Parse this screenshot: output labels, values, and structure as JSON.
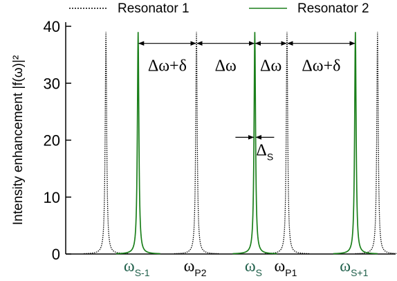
{
  "chart_data": {
    "type": "line",
    "ylabel": "Intensity enhancement |f(ω)|²",
    "ylim": [
      0,
      40
    ],
    "yticks": [
      "0",
      "10",
      "20",
      "30",
      "40"
    ],
    "grid": false,
    "legend_position": "top",
    "series": [
      {
        "name": "Resonator 1",
        "color": "#000000",
        "style": "dotted",
        "peaks": [
          {
            "x": 1.0,
            "height": 39
          },
          {
            "x": 3.25,
            "height": 39
          },
          {
            "x": 5.5,
            "height": 39
          },
          {
            "x": 7.75,
            "height": 39
          }
        ]
      },
      {
        "name": "Resonator 2",
        "color": "#1a7f1a",
        "style": "solid",
        "peaks": [
          {
            "x": 1.8,
            "height": 39
          },
          {
            "x": 4.7,
            "height": 39
          },
          {
            "x": 7.2,
            "height": 39
          }
        ]
      }
    ],
    "xtick_labels": [
      {
        "base": "ω",
        "sub": "S-1",
        "x": 1.8,
        "color": "#1f5f4a"
      },
      {
        "base": "ω",
        "sub": "P2",
        "x": 3.25,
        "color": "#000000"
      },
      {
        "base": "ω",
        "sub": "S",
        "x": 4.7,
        "color": "#1f5f4a"
      },
      {
        "base": "ω",
        "sub": "P1",
        "x": 5.5,
        "color": "#000000"
      },
      {
        "base": "ω",
        "sub": "S+1",
        "x": 7.2,
        "color": "#1f5f4a"
      }
    ],
    "annotations": [
      {
        "text": "Δω+δ",
        "from": 1.8,
        "to": 3.25,
        "y": 37
      },
      {
        "text": "Δω",
        "from": 3.25,
        "to": 4.7,
        "y": 37
      },
      {
        "text": "Δω",
        "from": 4.7,
        "to": 5.5,
        "y": 37
      },
      {
        "text": "Δω+δ",
        "from": 5.5,
        "to": 7.2,
        "y": 37
      }
    ],
    "delta_s": {
      "base": "Δ",
      "sub": "S",
      "x": 4.7,
      "y": 20.5
    }
  }
}
